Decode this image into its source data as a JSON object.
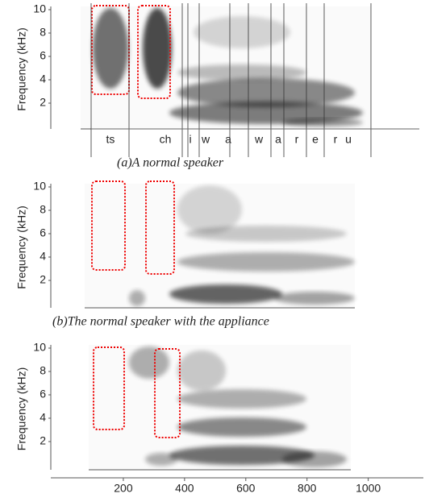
{
  "chart_data": [
    {
      "type": "spectrogram",
      "y_label": "Frequency (kHz)",
      "ylim": [
        0,
        10
      ],
      "yticks": [
        2,
        4,
        6,
        8,
        10
      ],
      "phonemes": [
        "ts",
        "ch",
        "i",
        "w",
        "a",
        "w",
        "a",
        "r",
        "e",
        "r",
        "u"
      ],
      "caption": "(a)A normal speaker"
    },
    {
      "type": "spectrogram",
      "y_label": "Frequency (kHz)",
      "ylim": [
        0,
        10
      ],
      "yticks": [
        2,
        4,
        6,
        8,
        10
      ],
      "caption": "(b)The normal speaker with the appliance"
    },
    {
      "type": "spectrogram",
      "y_label": "Frequency (kHz)",
      "ylim": [
        0,
        10
      ],
      "yticks": [
        2,
        4,
        6,
        8,
        10
      ],
      "xlim": [
        0,
        1180
      ],
      "xticks": [
        200,
        400,
        600,
        800,
        1000
      ]
    }
  ]
}
